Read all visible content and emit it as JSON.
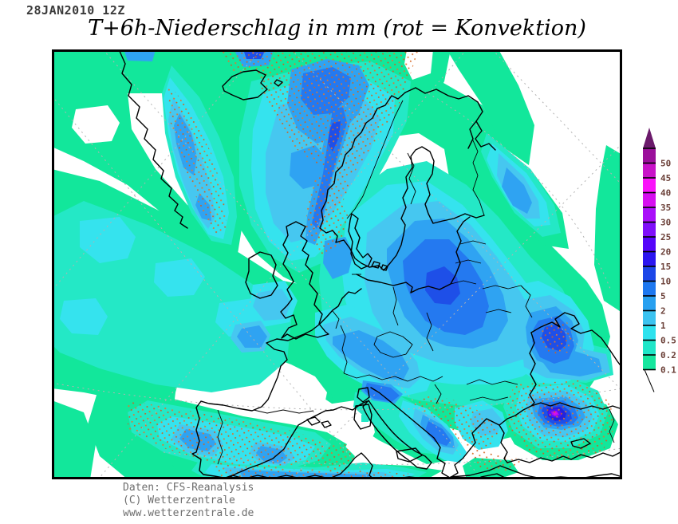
{
  "header": {
    "datetime": "28JAN2010 12Z",
    "title": "T+6h-Niederschlag in mm (rot = Konvektion)"
  },
  "footer": {
    "lines": [
      "Daten: CFS-Reanalysis",
      "(C) Wetterzentrale",
      "www.wetterzentrale.de"
    ]
  },
  "legend": {
    "unit": "mm",
    "tick_labels": [
      "50",
      "45",
      "40",
      "35",
      "30",
      "25",
      "20",
      "15",
      "10",
      "5",
      "2",
      "1",
      "0.5",
      "0.2",
      "0.1"
    ],
    "segment_colors": [
      "#9B109B",
      "#C813C8",
      "#FA14FA",
      "#D60FF0",
      "#AA0FFA",
      "#7F0FFA",
      "#5505FA",
      "#2B16F0",
      "#1C46E8",
      "#1E78F0",
      "#28A0F0",
      "#3CC3F0",
      "#2EE2EE",
      "#20E6C8",
      "#16E69E"
    ],
    "tip_color": "#6B1A6B",
    "label_color": "#6b4038",
    "tick_color": "#000000"
  },
  "map": {
    "palette": {
      "p01": "#12E79B",
      "p02": "#24E8C6",
      "p05": "#35E3EE",
      "p1": "#46C7F0",
      "p2": "#2FA3F2",
      "p5": "#2479F0",
      "p10": "#1E4FE8",
      "p15": "#2423DC",
      "p20": "#5512F5",
      "p30": "#AA0FF0",
      "p35": "#D50FEF",
      "conv_dot": "#E0772F",
      "conv_dot2": "#D2601E",
      "coast": "#000000",
      "border": "#000000",
      "graticule": "#b2b2b2",
      "frame": "#000000",
      "dry": "#FFFFFF"
    }
  }
}
